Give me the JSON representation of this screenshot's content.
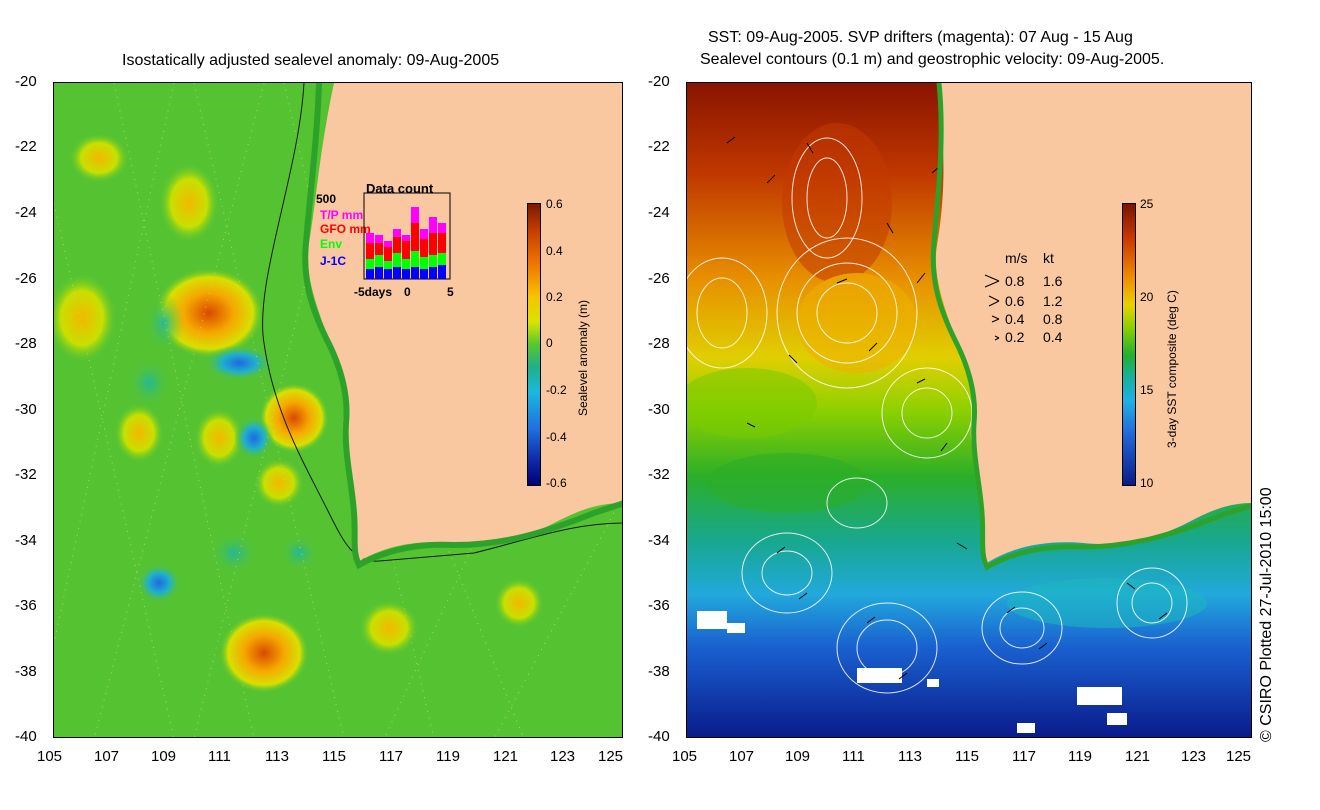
{
  "left_panel": {
    "title": "Isostatically adjusted sealevel anomaly: 09-Aug-2005",
    "colorbar_label": "Sealevel anomaly (m)",
    "colorbar_ticks": [
      "0.6",
      "0.4",
      "0.2",
      "0",
      "-0.2",
      "-0.4",
      "-0.6"
    ],
    "inset": {
      "title": "Data count",
      "ymax_label": "500",
      "legend": [
        {
          "label": "T/P mm",
          "color": "#ff00ff"
        },
        {
          "label": "GFO mm",
          "color": "#ff0000"
        },
        {
          "label": "Env",
          "color": "#00ff00"
        },
        {
          "label": "J-1C",
          "color": "#0000ff"
        }
      ],
      "xaxis": [
        "-5days",
        "0",
        "5"
      ]
    }
  },
  "right_panel": {
    "title_line1": "SST: 09-Aug-2005. SVP drifters (magenta): 07 Aug - 15 Aug",
    "title_line2": "Sealevel contours (0.1 m) and geostrophic velocity: 09-Aug-2005.",
    "colorbar_label": "3-day SST composite (deg C)",
    "colorbar_ticks": [
      "25",
      "20",
      "15",
      "10"
    ],
    "velocity_legend": {
      "header_ms": "m/s",
      "header_kt": "kt",
      "rows": [
        {
          "ms": "0.8",
          "kt": "1.6"
        },
        {
          "ms": "0.6",
          "kt": "1.2"
        },
        {
          "ms": "0.4",
          "kt": "0.8"
        },
        {
          "ms": "0.2",
          "kt": "0.4"
        }
      ]
    }
  },
  "axes": {
    "lat_ticks": [
      "-20",
      "-22",
      "-24",
      "-26",
      "-28",
      "-30",
      "-32",
      "-34",
      "-36",
      "-38",
      "-40"
    ],
    "lon_ticks": [
      "105",
      "107",
      "109",
      "111",
      "113",
      "115",
      "117",
      "119",
      "121",
      "123",
      "125"
    ]
  },
  "credit": "© CSIRO Plotted 27-Jul-2010 15:00"
}
